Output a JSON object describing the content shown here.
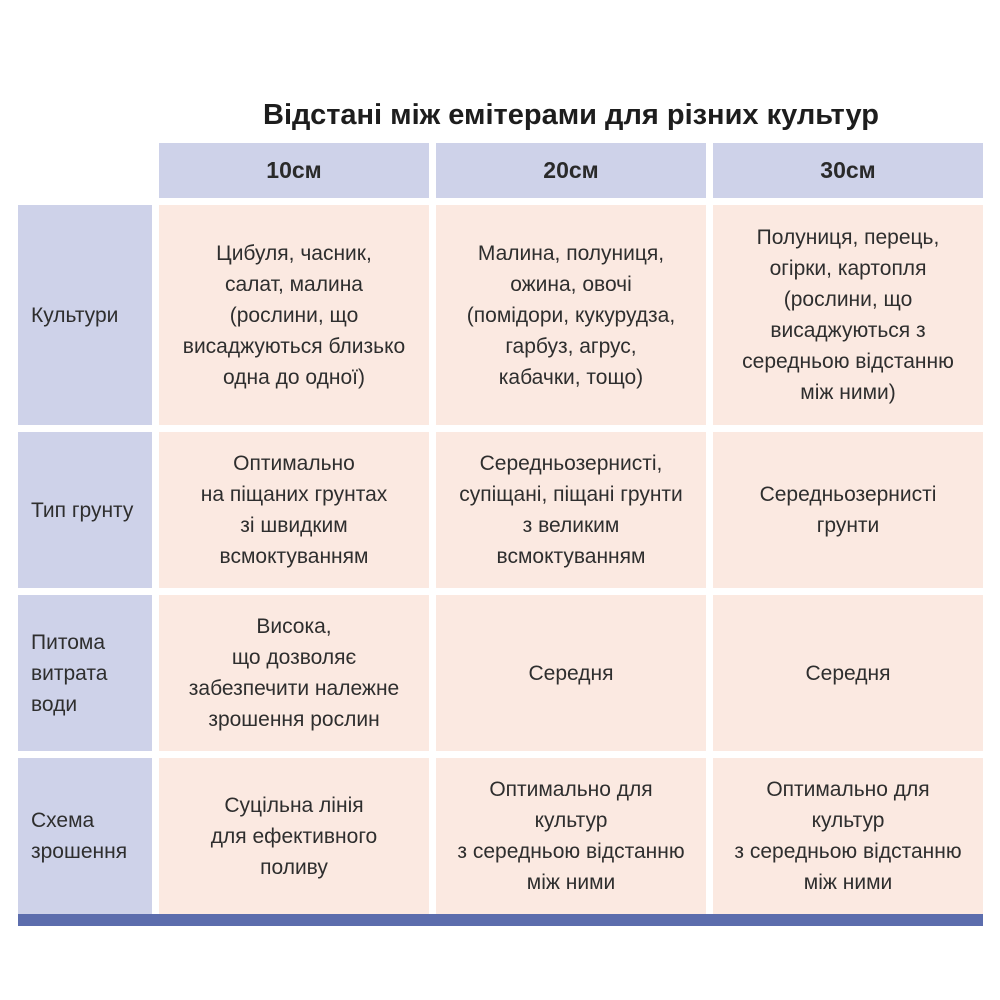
{
  "chart_data": {
    "type": "table",
    "title": "Відстані між емітерами для різних культур",
    "col_headers": [
      "10см",
      "20см",
      "30см"
    ],
    "rows": [
      {
        "header": "Культури",
        "cells": [
          "Цибуля, часник,\nсалат, малина\n(рослини, що\nвисаджуються близько\nодна до одної)",
          "Малина, полуниця,\nожина, овочі\n(помідори, кукурудза,\nгарбуз, агрус,\nкабачки, тощо)",
          "Полуниця, перець,\nогірки, картопля\n(рослини, що\nвисаджуються з\nсередньою відстанню\nміж ними)"
        ]
      },
      {
        "header": "Тип грунту",
        "cells": [
          "Оптимально\nна піщаних грунтах\nзі швидким\nвсмоктуванням",
          "Середньозернисті,\nсупіщані, піщані грунти\nз великим\nвсмоктуванням",
          "Середньозернисті\nгрунти"
        ]
      },
      {
        "header": "Питома\nвитрата\nводи",
        "cells": [
          "Висока,\nщо дозволяє\nзабезпечити належне\nзрошення рослин",
          "Середня",
          "Середня"
        ]
      },
      {
        "header": "Схема\nзрошення",
        "cells": [
          "Суцільна лінія\nдля ефективного\nполиву",
          "Оптимально для\nкультур\nз середньою відстанню\nміж ними",
          "Оптимально для\nкультур\nз середньою відстанню\nміж ними"
        ]
      }
    ],
    "layout": {
      "legend": "none",
      "grid": "off"
    }
  },
  "colors": {
    "header_cell_bg": "#CED2E9",
    "data_cell_bg": "#FBE9E1",
    "accent_bar": "#5C6DAD",
    "title_text": "#1D1D1D",
    "body_text": "#2E2E2E",
    "page_bg": "#FFFFFF"
  }
}
